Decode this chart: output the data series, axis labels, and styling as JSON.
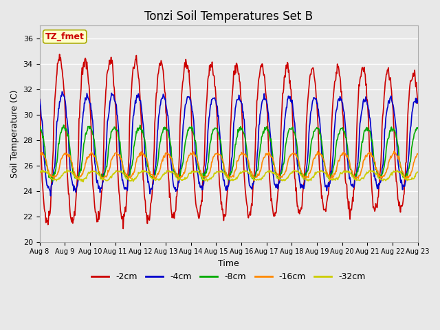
{
  "title": "Tonzi Soil Temperatures Set B",
  "xlabel": "Time",
  "ylabel": "Soil Temperature (C)",
  "ylim": [
    20,
    37
  ],
  "yticks": [
    20,
    22,
    24,
    26,
    28,
    30,
    32,
    34,
    36
  ],
  "x_labels": [
    "Aug 8",
    "Aug 9",
    "Aug 10",
    "Aug 11",
    "Aug 12",
    "Aug 13",
    "Aug 14",
    "Aug 15",
    "Aug 16",
    "Aug 17",
    "Aug 18",
    "Aug 19",
    "Aug 20",
    "Aug 21",
    "Aug 22",
    "Aug 23"
  ],
  "series": {
    "-2cm": {
      "color": "#cc0000",
      "linewidth": 1.2
    },
    "-4cm": {
      "color": "#0000cc",
      "linewidth": 1.2
    },
    "-8cm": {
      "color": "#00aa00",
      "linewidth": 1.2
    },
    "-16cm": {
      "color": "#ff8800",
      "linewidth": 1.2
    },
    "-32cm": {
      "color": "#cccc00",
      "linewidth": 1.2
    }
  },
  "annotation_text": "TZ_fmet",
  "annotation_color": "#cc0000",
  "annotation_bg": "#ffffcc",
  "annotation_border": "#aaaa00",
  "plot_bg": "#e8e8e8",
  "grid_color": "#ffffff",
  "title_fontsize": 12,
  "n_days": 15,
  "pts_per_day": 48,
  "series_params": {
    "-2cm": {
      "mean": 28.0,
      "amp": 6.5,
      "phase": 0.55,
      "taper": 0.18,
      "noise": 0.25
    },
    "-4cm": {
      "mean": 27.8,
      "amp": 3.8,
      "phase": 0.65,
      "taper": 0.1,
      "noise": 0.15
    },
    "-8cm": {
      "mean": 27.0,
      "amp": 2.0,
      "phase": 0.72,
      "taper": 0.05,
      "noise": 0.1
    },
    "-16cm": {
      "mean": 26.0,
      "amp": 0.95,
      "phase": 0.8,
      "taper": 0.02,
      "noise": 0.07
    },
    "-32cm": {
      "mean": 25.2,
      "amp": 0.35,
      "phase": 0.88,
      "taper": 0.01,
      "noise": 0.05
    }
  }
}
